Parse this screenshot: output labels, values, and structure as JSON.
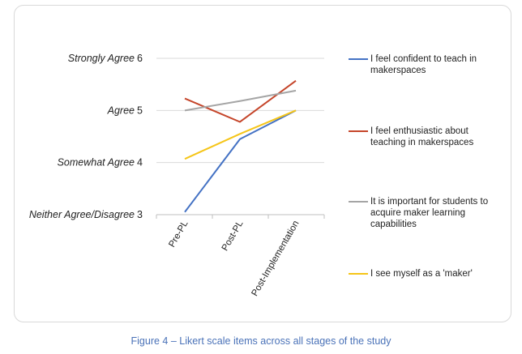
{
  "caption": "Figure 4 – Likert scale items across all stages of the study",
  "chart_data": {
    "type": "line",
    "categories": [
      "Pre-PL",
      "Post-PL",
      "Post-Implementation"
    ],
    "ylim": [
      3,
      6
    ],
    "yticks": [
      {
        "value": 3,
        "label": "3",
        "name": "Neither Agree/Disagree"
      },
      {
        "value": 4,
        "label": "4",
        "name": "Somewhat Agree"
      },
      {
        "value": 5,
        "label": "5",
        "name": "Agree"
      },
      {
        "value": 6,
        "label": "6",
        "name": "Strongly Agree"
      }
    ],
    "grid": true,
    "legend_position": "right",
    "series": [
      {
        "name": "I feel confident to teach in makerspaces",
        "color": "#4472c4",
        "values": [
          3.05,
          4.45,
          5.0
        ]
      },
      {
        "name": "I feel enthusiastic about teaching in makerspaces",
        "color": "#c5452a",
        "values": [
          5.23,
          4.78,
          5.57
        ]
      },
      {
        "name": "It is important for students to acquire maker learning capabilities",
        "color": "#a5a5a5",
        "values": [
          5.0,
          5.18,
          5.38
        ]
      },
      {
        "name": "I see myself as a 'maker'",
        "color": "#f5c518",
        "values": [
          4.07,
          4.55,
          5.0
        ]
      }
    ]
  }
}
